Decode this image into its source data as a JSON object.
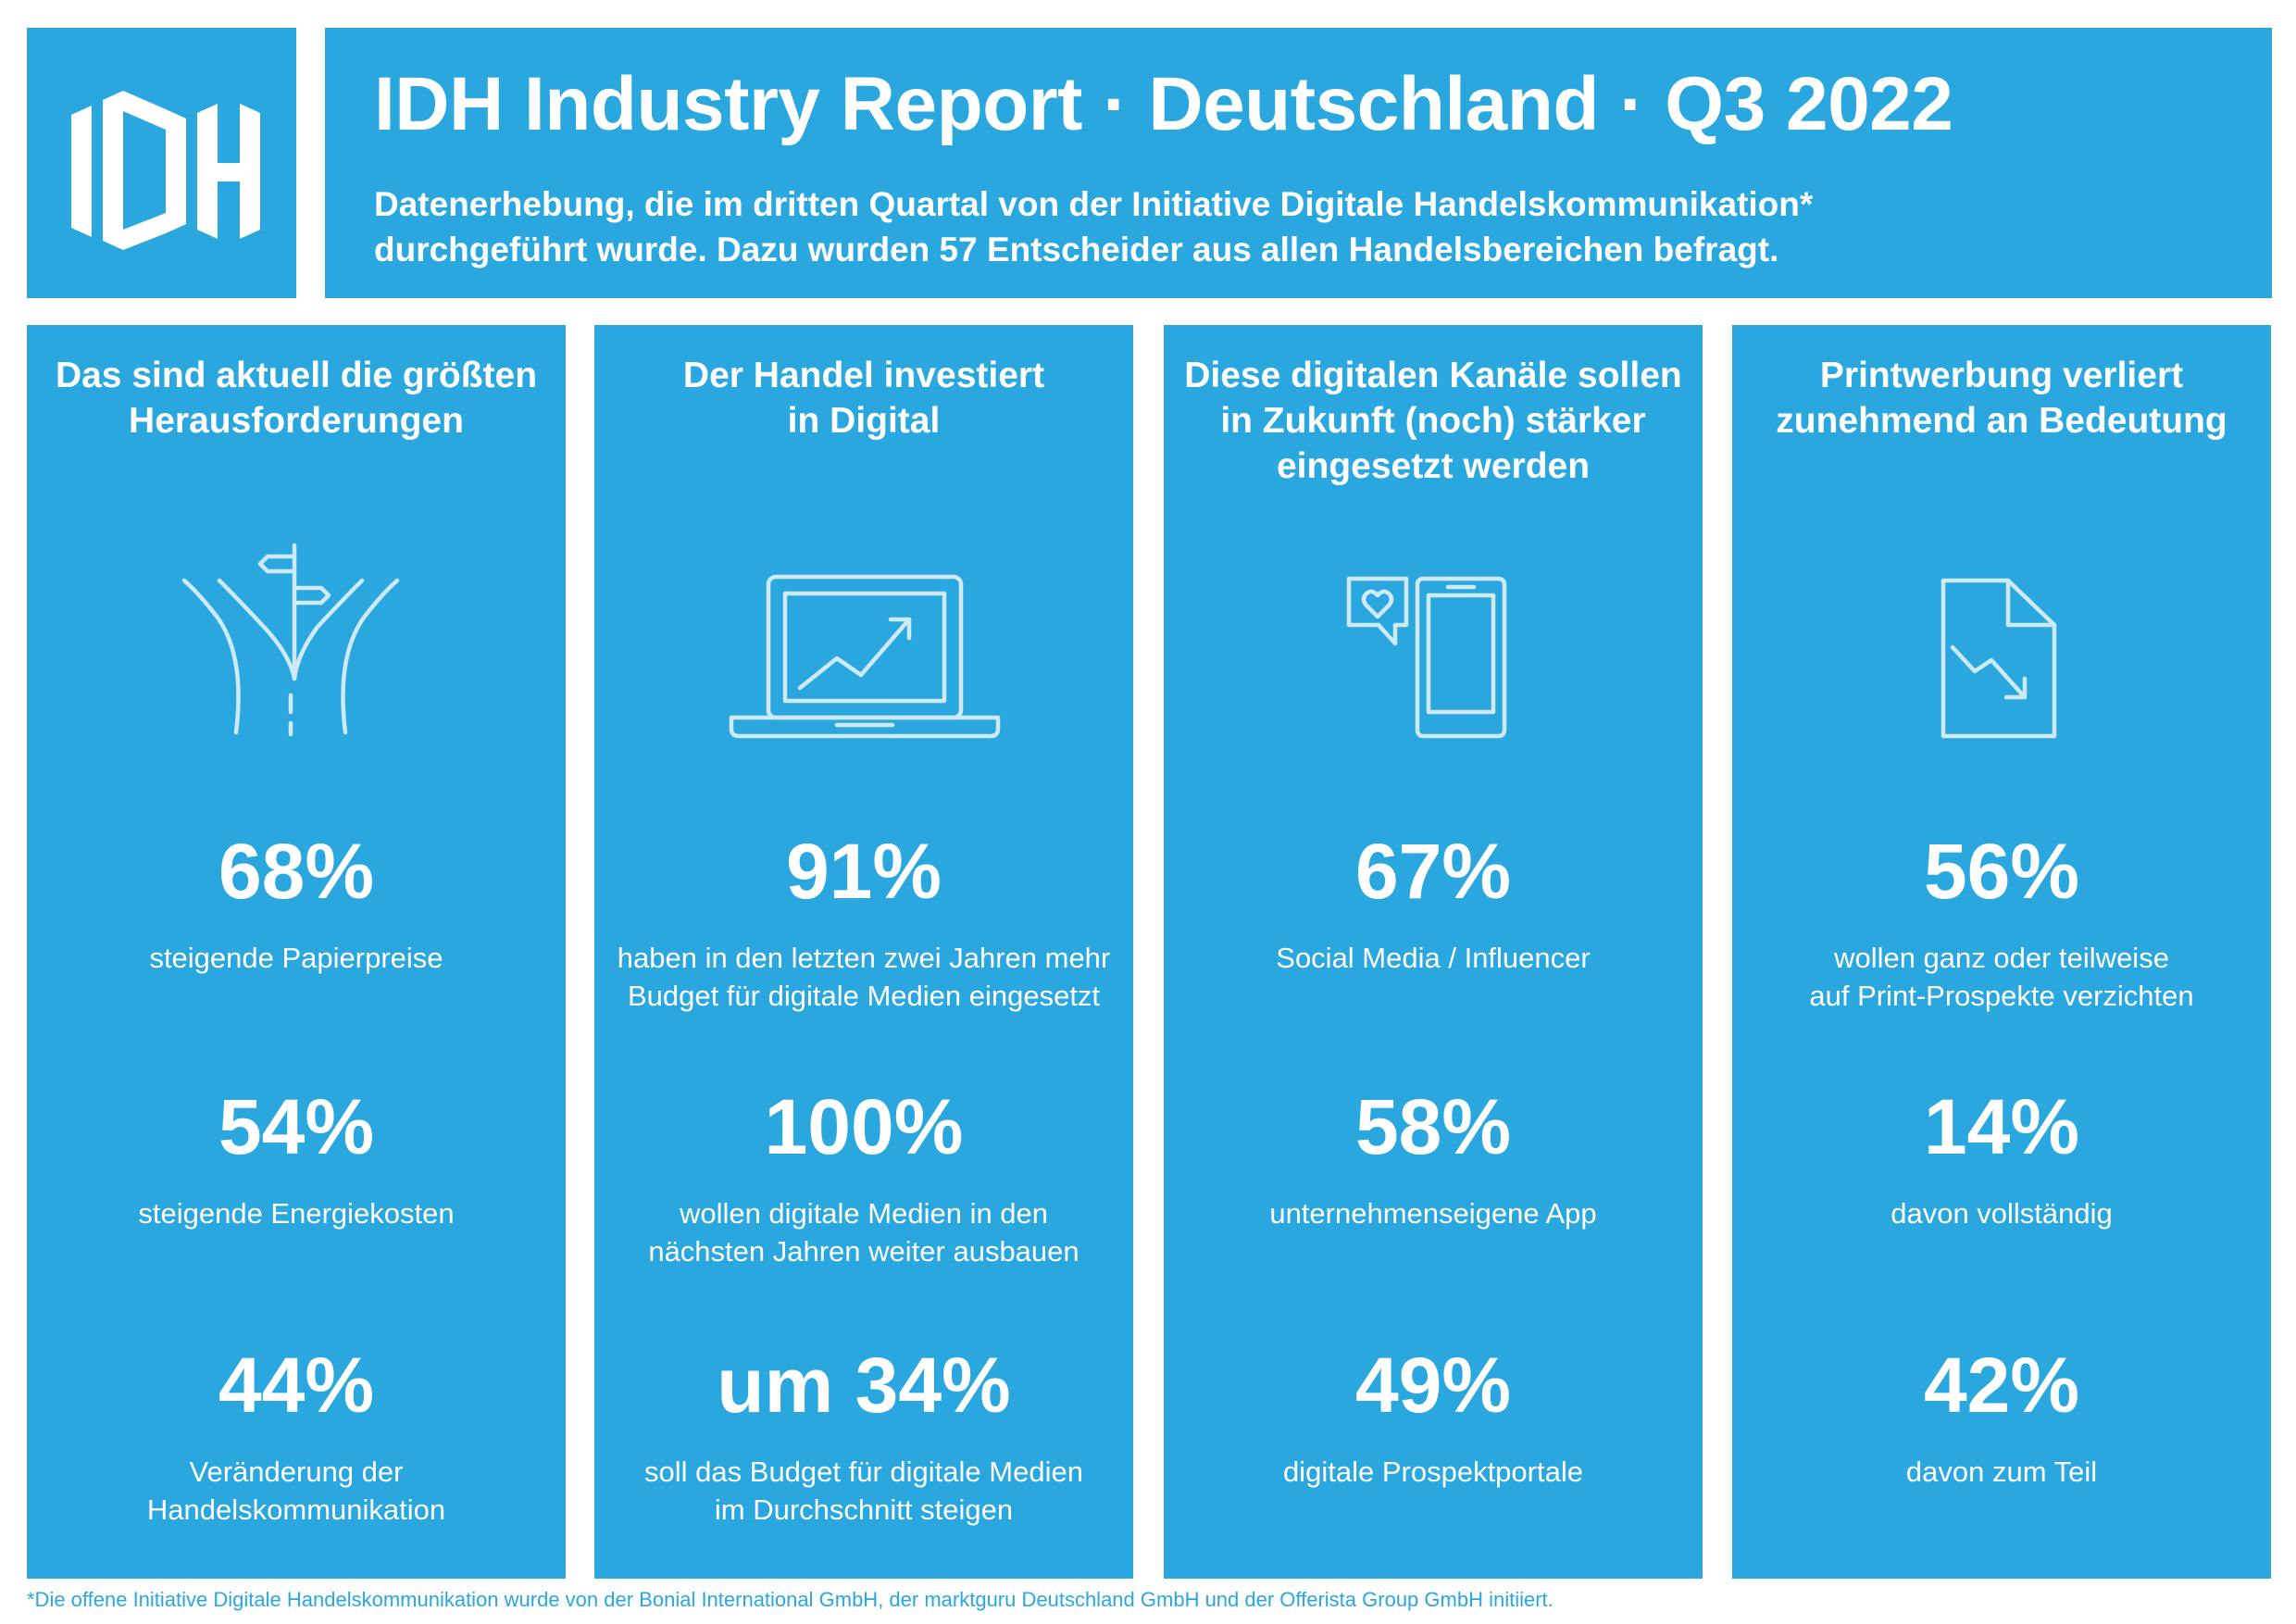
{
  "brand": {
    "logo_text": "IDH",
    "accent_color": "#2aa7df",
    "text_color": "#ffffff"
  },
  "header": {
    "title": "IDH Industry Report · Deutschland · Q3 2022",
    "subtitle_lines": [
      "Datenerhebung, die im dritten Quartal von der Initiative Digitale Handelskommunikation*",
      "durchgeführt wurde. Dazu wurden 57 Entscheider aus allen Handelsbereichen befragt."
    ]
  },
  "columns": [
    {
      "title_lines": [
        "Das sind aktuell die größten",
        "Herausforderungen"
      ],
      "icon": "crossroads-signpost-icon",
      "stats": [
        {
          "value": "68%",
          "label_lines": [
            "steigende Papierpreise"
          ]
        },
        {
          "value": "54%",
          "label_lines": [
            "steigende Energiekosten"
          ]
        },
        {
          "value": "44%",
          "label_lines": [
            "Veränderung der",
            "Handelskommunikation"
          ]
        }
      ]
    },
    {
      "title_lines": [
        "Der Handel investiert",
        "in Digital"
      ],
      "icon": "laptop-growth-chart-icon",
      "stats": [
        {
          "value": "91%",
          "label_lines": [
            "haben in den letzten zwei Jahren mehr",
            "Budget für digitale Medien eingesetzt"
          ]
        },
        {
          "value": "100%",
          "label_lines": [
            "wollen digitale Medien in den",
            "nächsten Jahren weiter ausbauen"
          ]
        },
        {
          "value": "um 34%",
          "label_lines": [
            "soll das Budget für digitale Medien",
            "im Durchschnitt steigen"
          ]
        }
      ]
    },
    {
      "title_lines": [
        "Diese digitalen Kanäle sollen",
        "in Zukunft (noch) stärker",
        "eingesetzt werden"
      ],
      "icon": "smartphone-heart-bubble-icon",
      "stats": [
        {
          "value": "67%",
          "label_lines": [
            "Social Media / Influencer"
          ]
        },
        {
          "value": "58%",
          "label_lines": [
            "unternehmenseigene App"
          ]
        },
        {
          "value": "49%",
          "label_lines": [
            "digitale Prospektportale"
          ]
        }
      ]
    },
    {
      "title_lines": [
        "Printwerbung verliert",
        "zunehmend an Bedeutung"
      ],
      "icon": "document-declining-chart-icon",
      "stats": [
        {
          "value": "56%",
          "label_lines": [
            "wollen ganz oder teilweise",
            "auf Print-Prospekte verzichten"
          ]
        },
        {
          "value": "14%",
          "label_lines": [
            "davon vollständig"
          ]
        },
        {
          "value": "42%",
          "label_lines": [
            "davon zum Teil"
          ]
        }
      ]
    }
  ],
  "footnote": "*Die offene Initiative Digitale Handelskommunikation wurde von der Bonial International GmbH, der marktguru Deutschland GmbH und der Offerista Group GmbH initiiert."
}
